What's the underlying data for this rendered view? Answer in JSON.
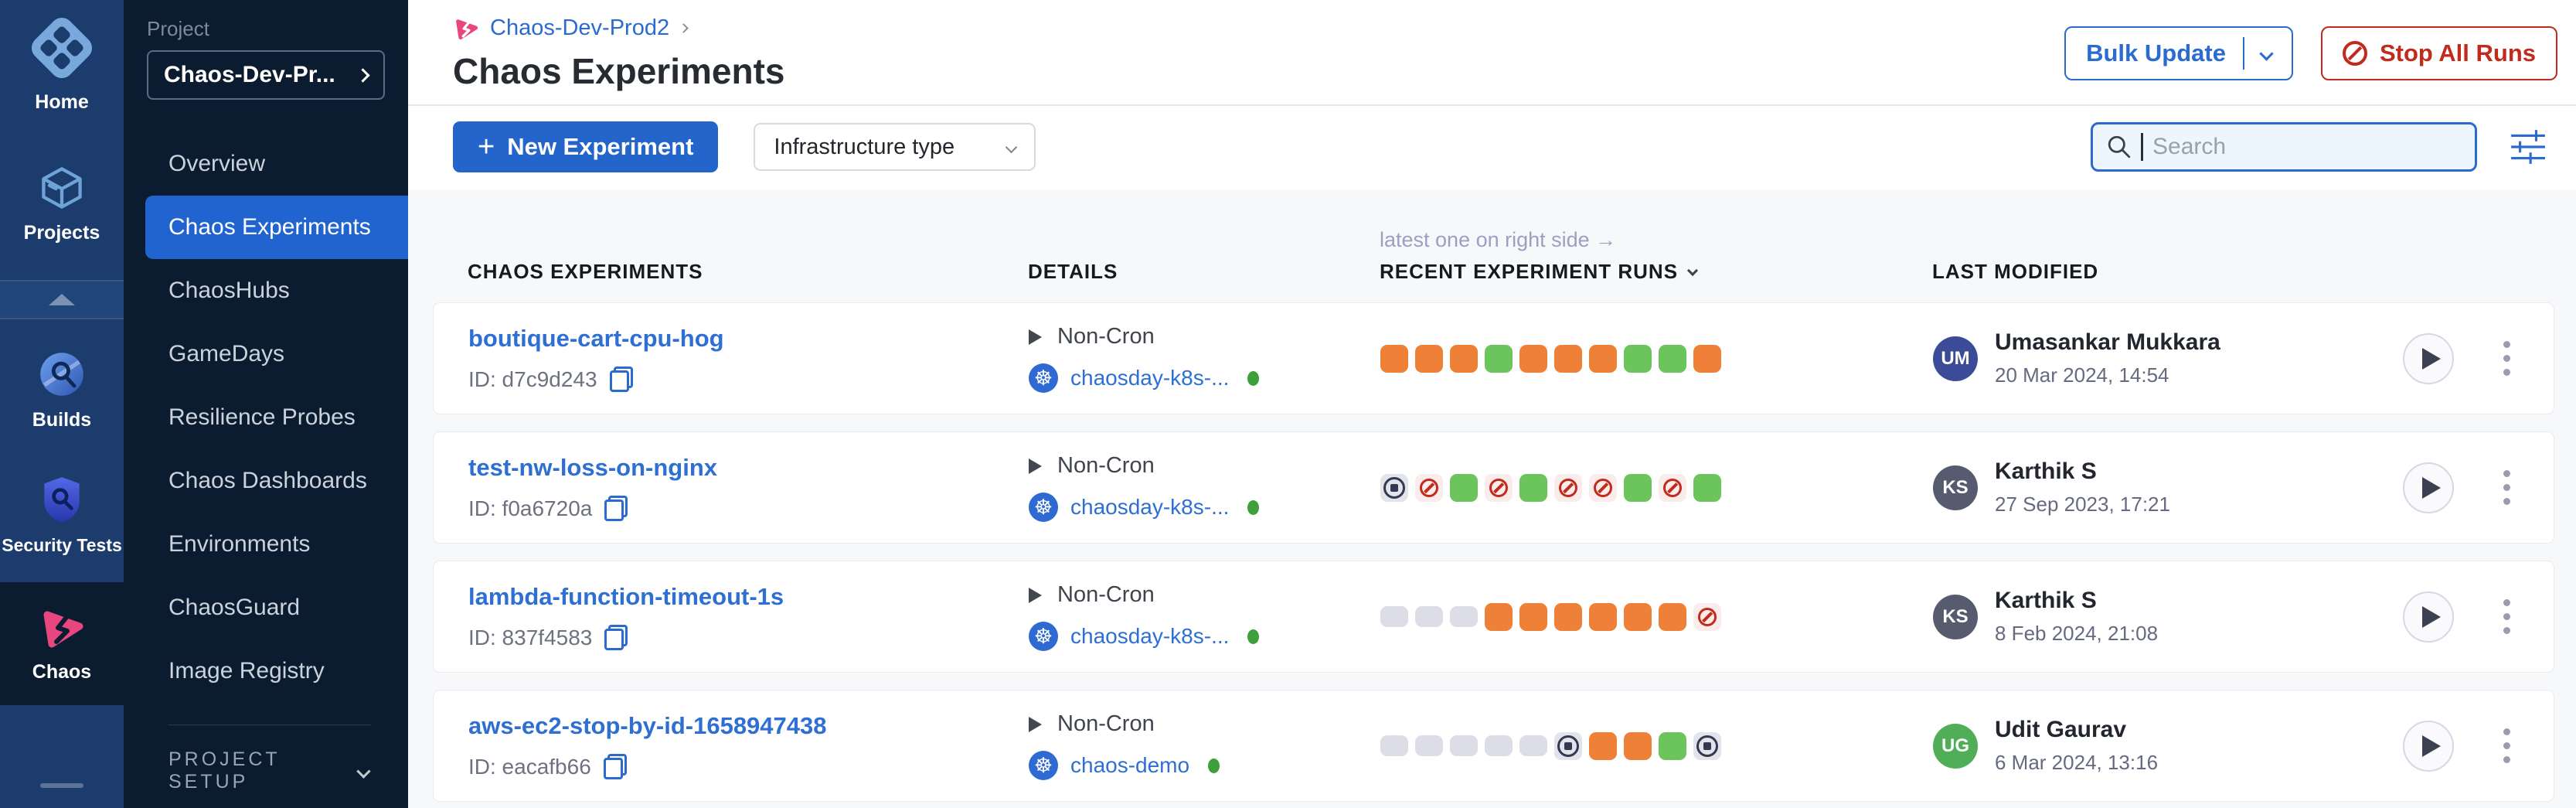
{
  "sidebar": {
    "rail": {
      "items": [
        {
          "label": "Home"
        },
        {
          "label": "Projects"
        },
        {
          "label": "Builds"
        },
        {
          "label": "Security Tests"
        },
        {
          "label": "Chaos"
        }
      ]
    },
    "project": {
      "label": "Project",
      "selected": "Chaos-Dev-Pr...",
      "items": [
        "Overview",
        "Chaos Experiments",
        "ChaosHubs",
        "GameDays",
        "Resilience Probes",
        "Chaos Dashboards",
        "Environments",
        "ChaosGuard",
        "Image Registry"
      ],
      "setup_label": "PROJECT SETUP"
    }
  },
  "header": {
    "breadcrumb": "Chaos-Dev-Prod2",
    "title": "Chaos Experiments",
    "bulk_update_label": "Bulk Update",
    "stop_all_label": "Stop All Runs"
  },
  "toolbar": {
    "plus": "+",
    "new_experiment_label": "New Experiment",
    "infrastructure_label": "Infrastructure type",
    "search_placeholder": "Search"
  },
  "table": {
    "hint": "latest one on right side →",
    "columns": {
      "experiments": "CHAOS EXPERIMENTS",
      "details": "DETAILS",
      "runs": "RECENT EXPERIMENT RUNS",
      "modified": "LAST MODIFIED"
    },
    "rows": [
      {
        "name": "boutique-cart-cpu-hog",
        "id": "ID: d7c9d243",
        "schedule": "Non-Cron",
        "infra": "chaosday-k8s-...",
        "runs": [
          "orange",
          "orange",
          "orange",
          "green",
          "orange",
          "orange",
          "orange",
          "green",
          "green",
          "orange"
        ],
        "modified": {
          "name": "Umasankar Mukkara",
          "date": "20 Mar 2024, 14:54",
          "initials": "UM",
          "avatar_color": "#3c4b97"
        }
      },
      {
        "name": "test-nw-loss-on-nginx",
        "id": "ID: f0a6720a",
        "schedule": "Non-Cron",
        "infra": "chaosday-k8s-...",
        "runs": [
          "stopped",
          "error",
          "green",
          "error",
          "green",
          "error",
          "error",
          "green",
          "error",
          "green"
        ],
        "modified": {
          "name": "Karthik S",
          "date": "27 Sep 2023, 17:21",
          "initials": "KS",
          "avatar_color": "#565b70"
        }
      },
      {
        "name": "lambda-function-timeout-1s",
        "id": "ID: 837f4583",
        "schedule": "Non-Cron",
        "infra": "chaosday-k8s-...",
        "runs": [
          "empty",
          "empty",
          "empty",
          "orange",
          "orange",
          "orange",
          "orange",
          "orange",
          "orange",
          "error"
        ],
        "modified": {
          "name": "Karthik S",
          "date": "8 Feb 2024, 21:08",
          "initials": "KS",
          "avatar_color": "#565b70"
        }
      },
      {
        "name": "aws-ec2-stop-by-id-1658947438",
        "id": "ID: eacafb66",
        "schedule": "Non-Cron",
        "infra": "chaos-demo",
        "runs": [
          "empty",
          "empty",
          "empty",
          "empty",
          "empty",
          "stopped",
          "orange",
          "orange",
          "green",
          "stopped"
        ],
        "modified": {
          "name": "Udit Gaurav",
          "date": "6 Mar 2024, 13:16",
          "initials": "UG",
          "avatar_color": "#4fae57"
        }
      }
    ]
  },
  "colors": {
    "accent_blue": "#2b6bd0",
    "nav_selected_blue": "#2264cf",
    "danger_red": "#c22a1c",
    "annotation_red": "#d5472e",
    "tile_orange": "#ee8037",
    "tile_green": "#6cc45c",
    "tile_empty": "#dcdde7",
    "tile_error_bg": "#faeceb",
    "tile_stopped_bg": "#e3e3eb",
    "kubernetes_blue": "#2f6ad2",
    "status_green": "#3ea03a",
    "rail_bg": "#1c3c6d",
    "panel_bg": "#0c1c30",
    "chaos_pink": "#e8467e"
  }
}
